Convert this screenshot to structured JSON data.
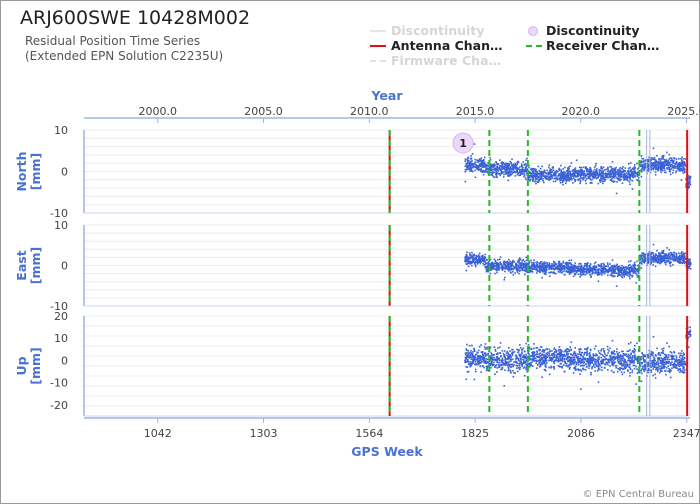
{
  "header": {
    "title": "ARJ600SWE 10428M002",
    "subtitle_line1": "Residual Position Time Series",
    "subtitle_line2": "(Extended EPN Solution C2235U)"
  },
  "legend": {
    "items": [
      {
        "label": "Discontinuity",
        "style": "line",
        "color": "#d9d9d9",
        "faded": true
      },
      {
        "label": "Discontinuity",
        "style": "circle",
        "color": "#d9b3f0",
        "faded": false
      },
      {
        "label": "Antenna Chan…",
        "style": "line",
        "color": "#e01010",
        "faded": false
      },
      {
        "label": "Receiver Chan…",
        "style": "dash",
        "color": "#22bb22",
        "faded": false
      },
      {
        "label": "Firmware Cha…",
        "style": "dash",
        "color": "#d9d9d9",
        "faded": true
      }
    ]
  },
  "footer": {
    "credit": "© EPN Central Bureau"
  },
  "chart_data": {
    "type": "scatter",
    "x_top": {
      "label": "Year",
      "ticks": [
        "2000.0",
        "2005.0",
        "2010.0",
        "2015.0",
        "2020.0",
        "2025.0"
      ],
      "tick_values": [
        2000,
        2005,
        2010,
        2015,
        2020,
        2025
      ]
    },
    "x_bottom": {
      "label": "GPS Week",
      "ticks": [
        "1042",
        "1303",
        "1564",
        "1825",
        "2086",
        "2347"
      ],
      "tick_values": [
        1042,
        1303,
        1564,
        1825,
        2086,
        2347
      ]
    },
    "xlim_gps_week": [
      860,
      2355
    ],
    "point_color": "#3a62d6",
    "grid": true,
    "panels": [
      {
        "name": "North",
        "ylabel": "North [mm]",
        "ylim": [
          -10,
          10
        ],
        "ticks": [
          "10",
          "0",
          "-10"
        ],
        "tick_values": [
          10,
          0,
          -10
        ],
        "noise": 1.3,
        "segments": [
          {
            "gps_week": [
              1800,
              1850
            ],
            "y": 1.5
          },
          {
            "gps_week": [
              1850,
              1955
            ],
            "y": 0.5
          },
          {
            "gps_week": [
              1955,
              2057
            ],
            "y": -0.8
          },
          {
            "gps_week": [
              2057,
              2148
            ],
            "y": -0.6
          },
          {
            "gps_week": [
              2148,
              2230
            ],
            "y": -0.7
          },
          {
            "gps_week": [
              2230,
              2345
            ],
            "y": 1.6
          },
          {
            "gps_week": [
              2345,
              2357
            ],
            "y": -2.5
          }
        ]
      },
      {
        "name": "East",
        "ylabel": "East [mm]",
        "ylim": [
          -10,
          10
        ],
        "ticks": [
          "10",
          "0",
          "-10"
        ],
        "tick_values": [
          10,
          0,
          -10
        ],
        "noise": 1.1,
        "segments": [
          {
            "gps_week": [
              1800,
              1850
            ],
            "y": 1.5
          },
          {
            "gps_week": [
              1850,
              1955
            ],
            "y": -0.2
          },
          {
            "gps_week": [
              1955,
              2057
            ],
            "y": -0.4
          },
          {
            "gps_week": [
              2057,
              2148
            ],
            "y": -0.9
          },
          {
            "gps_week": [
              2148,
              2230
            ],
            "y": -1.2
          },
          {
            "gps_week": [
              2230,
              2345
            ],
            "y": 1.8
          },
          {
            "gps_week": [
              2345,
              2357
            ],
            "y": 0.5
          }
        ]
      },
      {
        "name": "Up",
        "ylabel": "Up [mm]",
        "ylim": [
          -25,
          20
        ],
        "ticks": [
          "20",
          "10",
          "0",
          "-10",
          "-20"
        ],
        "tick_values": [
          20,
          10,
          0,
          -10,
          -20
        ],
        "noise": 3.8,
        "segments": [
          {
            "gps_week": [
              1800,
              1850
            ],
            "y": 1.0
          },
          {
            "gps_week": [
              1850,
              1955
            ],
            "y": 0.0
          },
          {
            "gps_week": [
              1955,
              2057
            ],
            "y": 1.5
          },
          {
            "gps_week": [
              2057,
              2148
            ],
            "y": 0.5
          },
          {
            "gps_week": [
              2148,
              2230
            ],
            "y": 0.0
          },
          {
            "gps_week": [
              2230,
              2345
            ],
            "y": -1.0
          },
          {
            "gps_week": [
              2345,
              2357
            ],
            "y": 12.0
          }
        ]
      }
    ],
    "events": {
      "antenna_change_gps_week": [
        1614,
        2348
      ],
      "receiver_change_gps_week": [
        1614,
        1860,
        1955,
        2230
      ],
      "firmware_change_gps_week": [
        2248,
        2256
      ],
      "discontinuity_markers": [
        {
          "gps_week": 1800,
          "label": "1"
        }
      ]
    }
  }
}
